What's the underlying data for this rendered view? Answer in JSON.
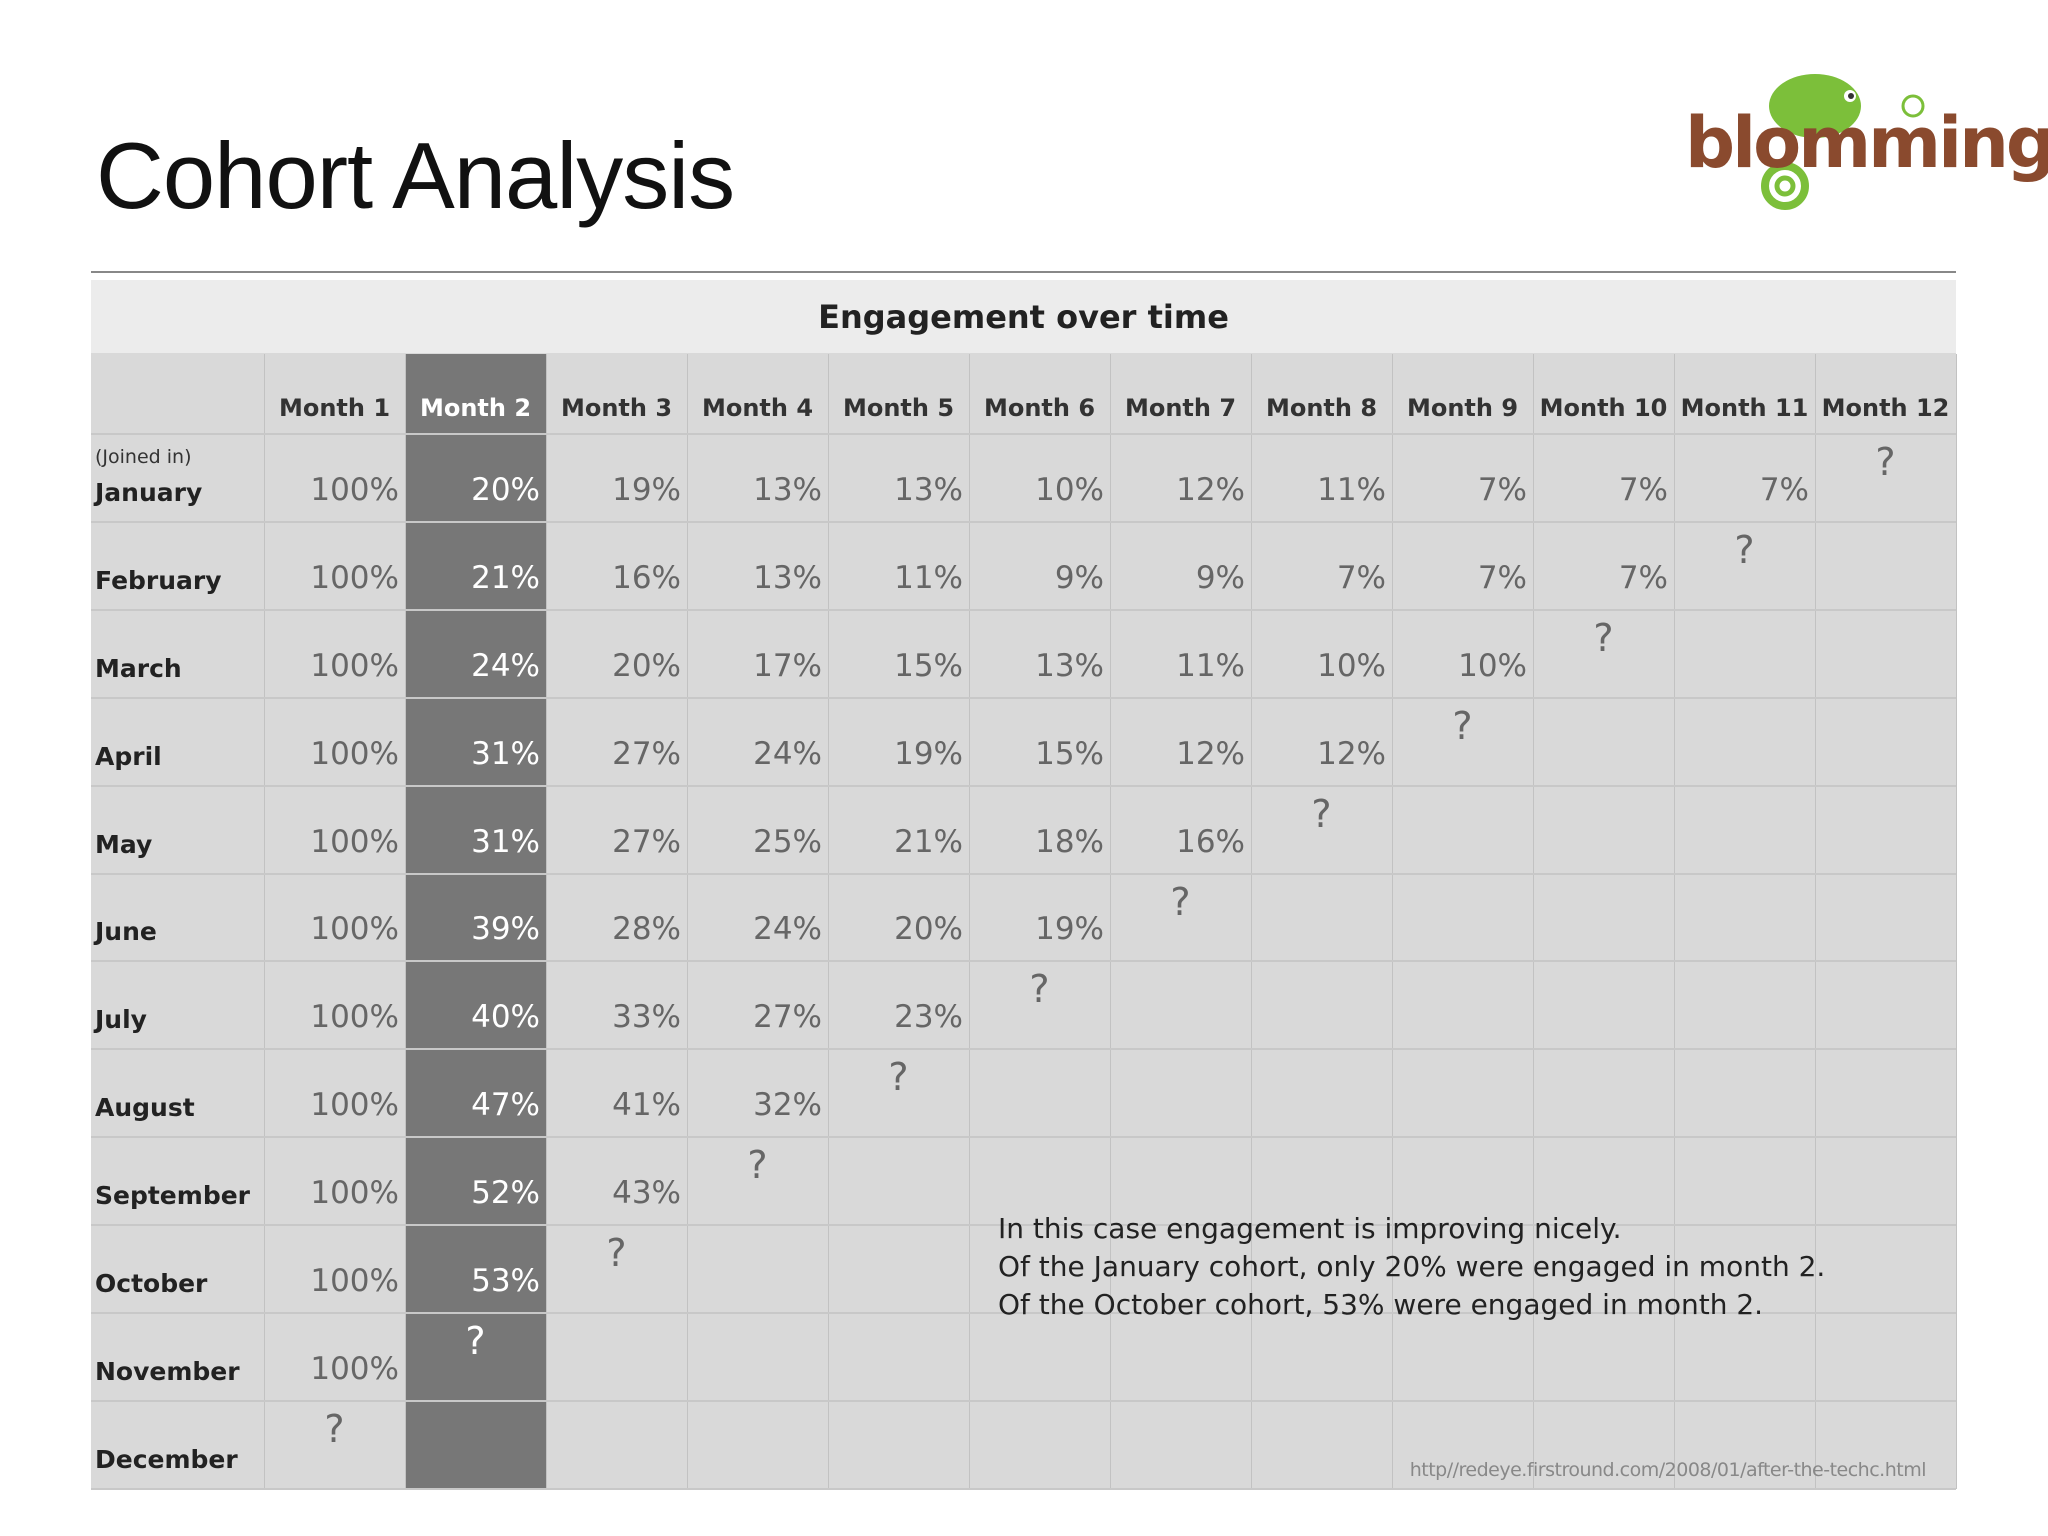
{
  "title": "Cohort Analysis",
  "logo": {
    "text": "blomming",
    "colors": {
      "brand_brown": "#8a4a2e",
      "brand_green": "#7cbf3a"
    }
  },
  "table": {
    "heading": "Engagement over time",
    "row_header_note": "(Joined in)",
    "highlight_column": "Month 2",
    "columns": [
      "Month 1",
      "Month 2",
      "Month 3",
      "Month 4",
      "Month 5",
      "Month 6",
      "Month 7",
      "Month 8",
      "Month 9",
      "Month 10",
      "Month 11",
      "Month 12"
    ],
    "rows": [
      {
        "label": "January",
        "values": [
          "100%",
          "20%",
          "19%",
          "13%",
          "13%",
          "10%",
          "12%",
          "11%",
          "7%",
          "7%",
          "7%",
          "?"
        ]
      },
      {
        "label": "February",
        "values": [
          "100%",
          "21%",
          "16%",
          "13%",
          "11%",
          "9%",
          "9%",
          "7%",
          "7%",
          "7%",
          "?",
          ""
        ]
      },
      {
        "label": "March",
        "values": [
          "100%",
          "24%",
          "20%",
          "17%",
          "15%",
          "13%",
          "11%",
          "10%",
          "10%",
          "?",
          "",
          ""
        ]
      },
      {
        "label": "April",
        "values": [
          "100%",
          "31%",
          "27%",
          "24%",
          "19%",
          "15%",
          "12%",
          "12%",
          "?",
          "",
          "",
          ""
        ]
      },
      {
        "label": "May",
        "values": [
          "100%",
          "31%",
          "27%",
          "25%",
          "21%",
          "18%",
          "16%",
          "?",
          "",
          "",
          "",
          ""
        ]
      },
      {
        "label": "June",
        "values": [
          "100%",
          "39%",
          "28%",
          "24%",
          "20%",
          "19%",
          "?",
          "",
          "",
          "",
          "",
          ""
        ]
      },
      {
        "label": "July",
        "values": [
          "100%",
          "40%",
          "33%",
          "27%",
          "23%",
          "?",
          "",
          "",
          "",
          "",
          "",
          ""
        ]
      },
      {
        "label": "August",
        "values": [
          "100%",
          "47%",
          "41%",
          "32%",
          "?",
          "",
          "",
          "",
          "",
          "",
          "",
          ""
        ]
      },
      {
        "label": "September",
        "values": [
          "100%",
          "52%",
          "43%",
          "?",
          "",
          "",
          "",
          "",
          "",
          "",
          "",
          ""
        ]
      },
      {
        "label": "October",
        "values": [
          "100%",
          "53%",
          "?",
          "",
          "",
          "",
          "",
          "",
          "",
          "",
          "",
          ""
        ]
      },
      {
        "label": "November",
        "values": [
          "100%",
          "?",
          "",
          "",
          "",
          "",
          "",
          "",
          "",
          "",
          "",
          ""
        ]
      },
      {
        "label": "December",
        "values": [
          "?",
          "",
          "",
          "",
          "",
          "",
          "",
          "",
          "",
          "",
          "",
          ""
        ]
      }
    ],
    "note": [
      "In this case engagement is improving nicely.",
      "Of the January cohort, only 20% were engaged in month 2.",
      "Of the October cohort, 53% were engaged in month 2."
    ],
    "source": "http//redeye.firstround.com/2008/01/after-the-techc.html"
  }
}
